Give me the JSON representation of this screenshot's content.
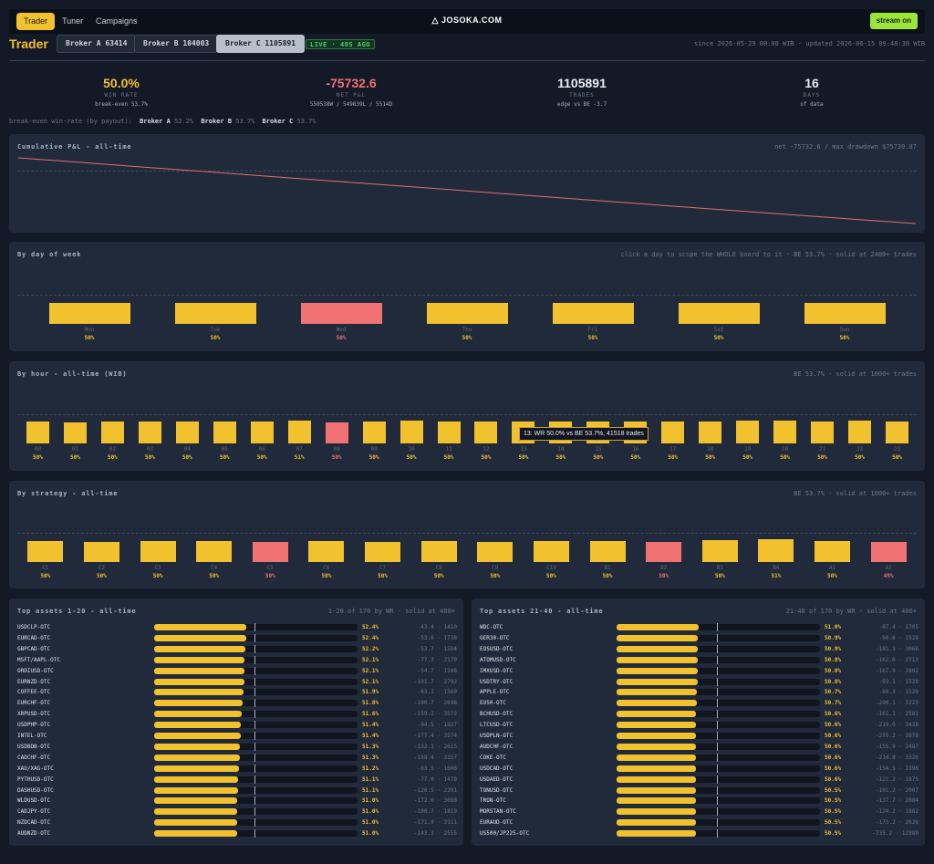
{
  "nav": {
    "tabs": [
      "Trader",
      "Tuner",
      "Campaigns"
    ],
    "active_tab": "Trader",
    "brand": "JOSOKA.COM",
    "stream_button": "stream on"
  },
  "title_bar": {
    "title": "Trader",
    "brokers": [
      "Broker A 63414",
      "Broker B 104003",
      "Broker C 1105891"
    ],
    "active_broker": "Broker C 1105891",
    "live_badge": "LIVE · 40S AGO",
    "since_text": "since 2026-05-29 00:00 WIB · updated 2026-06-15 09:48:30 WIB"
  },
  "kpis": [
    {
      "value": "50.0%",
      "label": "WIN RATE",
      "sub": "break-even 53.7%",
      "color": "#f2c12e"
    },
    {
      "value": "-75732.6",
      "label": "NET P&L",
      "sub": "550538W / 549839L / 5514D",
      "color": "#f07272"
    },
    {
      "value": "1105891",
      "label": "TRADES",
      "sub": "edge vs BE -3.7",
      "color": "#e8ecf3"
    },
    {
      "value": "16",
      "label": "DAYS",
      "sub": "of data",
      "color": "#e8ecf3"
    }
  ],
  "breakeven": {
    "label": "break-even win-rate (by payout):",
    "items": [
      {
        "broker": "Broker A",
        "value": "52.2%"
      },
      {
        "broker": "Broker B",
        "value": "53.7%"
      },
      {
        "broker": "Broker C",
        "value": "53.7%"
      }
    ]
  },
  "colors": {
    "good": "#f2c12e",
    "bad": "#f07272",
    "line": "#e07070"
  },
  "pnl_panel": {
    "title": "Cumulative P&L - all-time",
    "note": "net -75732.6 / max drawdown $75739.87"
  },
  "dow_panel": {
    "title": "By day of week",
    "note": "click a day to scope the WHOLE board to it · BE 53.7% · solid at 2400+ trades"
  },
  "hour_panel": {
    "title": "By hour - all-time (WIB)",
    "note": "BE 53.7% · solid at 1000+ trades",
    "tooltip": "13: WR 50.0% vs BE 53.7%, 41518 trades"
  },
  "strategy_panel": {
    "title": "By strategy - all-time",
    "note": "BE 53.7% · solid at 1000+ trades"
  },
  "chart_data": [
    {
      "type": "line",
      "title": "Cumulative P&L - all-time",
      "y": [
        0,
        -5000,
        -10200,
        -15300,
        -20400,
        -25500,
        -30500,
        -35600,
        -40700,
        -45800,
        -50900,
        -56000,
        -61000,
        -66000,
        -71000,
        -75732.6
      ],
      "ylim": [
        -75739.87,
        0
      ]
    },
    {
      "type": "bar",
      "title": "By day of week",
      "categories": [
        "Mon",
        "Tue",
        "Wed",
        "Thu",
        "Fri",
        "Sat",
        "Sun"
      ],
      "values": [
        50,
        50,
        50,
        50,
        50,
        50,
        50
      ],
      "value_labels": [
        "50%",
        "50%",
        "50%",
        "50%",
        "50%",
        "50%",
        "50%"
      ],
      "bar_fraction": [
        0.88,
        0.88,
        0.88,
        0.88,
        0.88,
        0.88,
        0.88
      ],
      "bad": [
        false,
        false,
        true,
        false,
        false,
        false,
        false
      ]
    },
    {
      "type": "bar",
      "title": "By hour - all-time (WIB)",
      "categories": [
        "00",
        "01",
        "02",
        "03",
        "04",
        "05",
        "06",
        "07",
        "08",
        "09",
        "10",
        "11",
        "12",
        "13",
        "14",
        "15",
        "16",
        "17",
        "18",
        "19",
        "20",
        "21",
        "22",
        "23"
      ],
      "values": [
        50,
        50,
        50,
        50,
        50,
        50,
        50,
        51,
        50,
        50,
        50,
        50,
        50,
        50,
        50,
        50,
        50,
        50,
        50,
        50,
        50,
        50,
        50,
        50
      ],
      "value_labels": [
        "50%",
        "50%",
        "50%",
        "50%",
        "50%",
        "50%",
        "50%",
        "51%",
        "50%",
        "50%",
        "50%",
        "50%",
        "50%",
        "50%",
        "50%",
        "50%",
        "50%",
        "50%",
        "50%",
        "50%",
        "50%",
        "50%",
        "50%",
        "50%"
      ],
      "bar_fraction": [
        0.96,
        0.92,
        0.94,
        0.96,
        0.94,
        0.94,
        0.96,
        1.0,
        0.92,
        0.96,
        0.98,
        0.94,
        0.96,
        0.96,
        0.96,
        0.96,
        0.96,
        0.94,
        0.96,
        0.98,
        0.98,
        0.96,
        0.98,
        0.96
      ],
      "bad": [
        false,
        false,
        false,
        false,
        false,
        false,
        false,
        false,
        true,
        false,
        false,
        false,
        false,
        false,
        false,
        false,
        false,
        false,
        false,
        false,
        false,
        false,
        false,
        false
      ]
    },
    {
      "type": "bar",
      "title": "By strategy - all-time",
      "categories": [
        "C1",
        "C2",
        "C3",
        "C4",
        "C5",
        "C6",
        "C7",
        "C8",
        "C9",
        "C10",
        "B1",
        "B2",
        "B3",
        "B4",
        "A1",
        "A2"
      ],
      "values": [
        50,
        50,
        50,
        50,
        50,
        50,
        50,
        50,
        50,
        50,
        50,
        50,
        50,
        51,
        50,
        49
      ],
      "value_labels": [
        "50%",
        "50%",
        "50%",
        "50%",
        "50%",
        "50%",
        "50%",
        "50%",
        "50%",
        "50%",
        "50%",
        "50%",
        "50%",
        "51%",
        "50%",
        "49%"
      ],
      "bar_fraction": [
        0.92,
        0.88,
        0.9,
        0.92,
        0.88,
        0.9,
        0.86,
        0.9,
        0.88,
        0.92,
        0.92,
        0.86,
        0.96,
        1.0,
        0.92,
        0.88
      ],
      "bad": [
        false,
        false,
        false,
        false,
        true,
        false,
        false,
        false,
        false,
        false,
        false,
        true,
        false,
        false,
        false,
        true
      ]
    }
  ],
  "assets_left": {
    "title": "Top assets 1-20 - all-time",
    "note": "1-20 of 170 by WR · solid at 400+",
    "items": [
      {
        "name": "USDCLP-OTC",
        "wr": "52.4%",
        "stat": "-43.4 · 1410",
        "fill": 0.455
      },
      {
        "name": "EURCAD-OTC",
        "wr": "52.4%",
        "stat": "-53.6 · 1738",
        "fill": 0.455
      },
      {
        "name": "GBPCAD-OTC",
        "wr": "52.2%",
        "stat": "-53.7 · 1584",
        "fill": 0.45
      },
      {
        "name": "MSFT/AAPL-OTC",
        "wr": "52.1%",
        "stat": "-77.3 · 2179",
        "fill": 0.445
      },
      {
        "name": "ORDIUSD-OTC",
        "wr": "52.1%",
        "stat": "-54.7 · 1508",
        "fill": 0.445
      },
      {
        "name": "EURNZD-OTC",
        "wr": "52.1%",
        "stat": "-101.7 · 2792",
        "fill": 0.445
      },
      {
        "name": "COFFEE-OTC",
        "wr": "51.9%",
        "stat": "-63.1 · 1569",
        "fill": 0.44
      },
      {
        "name": "EURCHF-OTC",
        "wr": "51.8%",
        "stat": "-100.7 · 2698",
        "fill": 0.435
      },
      {
        "name": "XRPUSD-OTC",
        "wr": "51.6%",
        "stat": "-159.2 · 3572",
        "fill": 0.43
      },
      {
        "name": "USDPHP-OTC",
        "wr": "51.4%",
        "stat": "-94.5 · 1927",
        "fill": 0.425
      },
      {
        "name": "INTEL-OTC",
        "wr": "51.4%",
        "stat": "-177.4 · 3574",
        "fill": 0.425
      },
      {
        "name": "USDBDB-OTC",
        "wr": "51.3%",
        "stat": "-132.3 · 2615",
        "fill": 0.42
      },
      {
        "name": "CADCHF-OTC",
        "wr": "51.3%",
        "stat": "-158.4 · 3157",
        "fill": 0.42
      },
      {
        "name": "XAU/XAG-OTC",
        "wr": "51.2%",
        "stat": "-83.5 · 1606",
        "fill": 0.415
      },
      {
        "name": "PYTHUSD-OTC",
        "wr": "51.1%",
        "stat": "-77.0 · 1478",
        "fill": 0.412
      },
      {
        "name": "DASHUSD-OTC",
        "wr": "51.1%",
        "stat": "-126.5 · 2291",
        "fill": 0.412
      },
      {
        "name": "WLDUSD-OTC",
        "wr": "51.0%",
        "stat": "-172.0 · 3088",
        "fill": 0.41
      },
      {
        "name": "CADJPY-OTC",
        "wr": "51.0%",
        "stat": "-100.7 · 1819",
        "fill": 0.41
      },
      {
        "name": "NZDCAD-OTC",
        "wr": "51.0%",
        "stat": "-171.9 · 3111",
        "fill": 0.41
      },
      {
        "name": "AUDNZD-OTC",
        "wr": "51.0%",
        "stat": "-143.3 · 2555",
        "fill": 0.41
      }
    ]
  },
  "assets_right": {
    "title": "Top assets 21-40 - all-time",
    "note": "21-40 of 170 by WR · solid at 400+",
    "items": [
      {
        "name": "WDC-OTC",
        "wr": "51.0%",
        "stat": "-87.4 · 1705",
        "fill": 0.405
      },
      {
        "name": "GER30-OTC",
        "wr": "50.9%",
        "stat": "-90.6 · 1528",
        "fill": 0.4
      },
      {
        "name": "EOSUSD-OTC",
        "wr": "50.9%",
        "stat": "-181.3 · 3066",
        "fill": 0.4
      },
      {
        "name": "ATOMUSD-OTC",
        "wr": "50.8%",
        "stat": "-162.6 · 2713",
        "fill": 0.398
      },
      {
        "name": "IMXUSD-OTC",
        "wr": "50.8%",
        "stat": "-167.9 · 2802",
        "fill": 0.398
      },
      {
        "name": "USDTRY-OTC",
        "wr": "50.8%",
        "stat": "-93.1 · 1528",
        "fill": 0.398
      },
      {
        "name": "APPLE-OTC",
        "wr": "50.7%",
        "stat": "-90.3 · 1528",
        "fill": 0.395
      },
      {
        "name": "EU50-OTC",
        "wr": "50.7%",
        "stat": "-200.1 · 3223",
        "fill": 0.395
      },
      {
        "name": "BCHUSD-OTC",
        "wr": "50.6%",
        "stat": "-161.1 · 2581",
        "fill": 0.392
      },
      {
        "name": "LTCUSD-OTC",
        "wr": "50.6%",
        "stat": "-219.0 · 3438",
        "fill": 0.392
      },
      {
        "name": "USDPLN-OTC",
        "wr": "50.6%",
        "stat": "-255.2 · 3978",
        "fill": 0.392
      },
      {
        "name": "AUDCHF-OTC",
        "wr": "50.6%",
        "stat": "-155.9 · 2487",
        "fill": 0.392
      },
      {
        "name": "COKE-OTC",
        "wr": "50.6%",
        "stat": "-214.0 · 3326",
        "fill": 0.392
      },
      {
        "name": "USDCAD-OTC",
        "wr": "50.6%",
        "stat": "-154.5 · 2396",
        "fill": 0.392
      },
      {
        "name": "USDAED-OTC",
        "wr": "50.6%",
        "stat": "-121.2 · 1875",
        "fill": 0.392
      },
      {
        "name": "TONUSD-OTC",
        "wr": "50.5%",
        "stat": "-101.2 · 2007",
        "fill": 0.39
      },
      {
        "name": "TRON-OTC",
        "wr": "50.5%",
        "stat": "-137.7 · 2084",
        "fill": 0.39
      },
      {
        "name": "MORSTAN-OTC",
        "wr": "50.5%",
        "stat": "-124.2 · 1882",
        "fill": 0.39
      },
      {
        "name": "EURAUD-OTC",
        "wr": "50.5%",
        "stat": "-173.2 · 2626",
        "fill": 0.39
      },
      {
        "name": "US500/JP225-OTC",
        "wr": "50.5%",
        "stat": "-735.2 · 12389",
        "fill": 0.39
      }
    ]
  }
}
